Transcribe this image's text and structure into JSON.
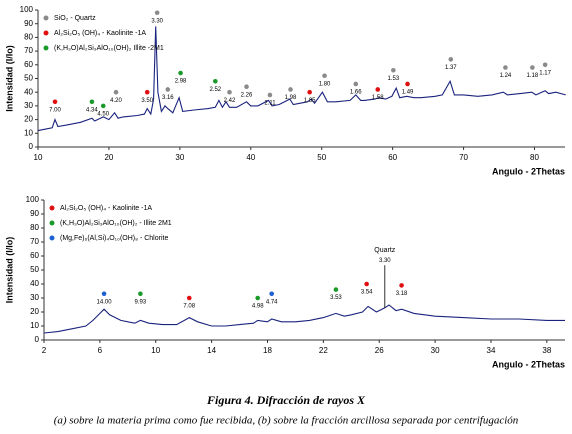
{
  "chart_data": [
    {
      "type": "line",
      "y_label": "Intensidad (I/Io)",
      "x_label": "Angulo - 2Thetas",
      "xlim": [
        10,
        84.3
      ],
      "ylim": [
        0,
        100
      ],
      "xticks": [
        10,
        20,
        30,
        40,
        50,
        60,
        70,
        80
      ],
      "yticks": [
        0,
        10,
        20,
        30,
        40,
        50,
        60,
        70,
        80,
        90,
        100
      ],
      "color": "#1a237e",
      "x": [
        10,
        11,
        12,
        12.4,
        12.8,
        14,
        16,
        17.6,
        18,
        19.2,
        20,
        20.8,
        21.3,
        22,
        24,
        25,
        25.4,
        25.9,
        26.3,
        26.6,
        26.9,
        27.4,
        27.9,
        28.3,
        29,
        29.9,
        30.4,
        32,
        34,
        35,
        35.5,
        36,
        36.5,
        37,
        38,
        39.4,
        40,
        41,
        42.5,
        43,
        44,
        45.5,
        46,
        47,
        48,
        48.5,
        49,
        50.1,
        50.8,
        52,
        54,
        54.8,
        55.5,
        56,
        57.5,
        58,
        59,
        59.9,
        60.5,
        61,
        62,
        63,
        64,
        66,
        67,
        68.1,
        68.7,
        70,
        72,
        74,
        75.6,
        76.2,
        78,
        79.6,
        80.2,
        81.5,
        82,
        83,
        84.4
      ],
      "values": [
        12,
        13,
        14,
        20,
        15,
        16,
        18,
        21,
        19,
        22,
        20,
        25,
        21,
        22,
        23,
        24,
        28,
        24,
        35,
        88,
        40,
        26,
        30,
        28,
        25,
        36,
        26,
        27,
        28,
        29,
        34,
        29,
        33,
        29,
        29,
        33,
        30,
        30,
        34,
        30,
        31,
        35,
        31,
        32,
        33,
        35,
        32,
        40,
        33,
        33,
        34,
        38,
        34,
        34,
        35,
        36,
        35,
        37,
        43,
        36,
        37,
        36,
        36,
        37,
        38,
        48,
        38,
        38,
        37,
        38,
        40,
        38,
        39,
        40,
        38,
        41,
        39,
        40,
        38
      ],
      "legend": [
        {
          "label": "SiO₂ - Quartz",
          "color": "#8a8a8a"
        },
        {
          "label": "Al₂Si₂O₅ (OH)₄ - Kaolinite -1A",
          "color": "#e01010"
        },
        {
          "label": "(K,H₃O)Al₂Si₃AlO₁₀(OH)₂ Illite -2M1",
          "color": "#1a9a2a"
        }
      ],
      "annotations": [
        {
          "x": 12.4,
          "y": 33,
          "label": "7.00",
          "color": "#e01010"
        },
        {
          "x": 17.6,
          "y": 33,
          "label": "4.34",
          "color": "#1a9a2a"
        },
        {
          "x": 19.2,
          "y": 30,
          "label": "4.50",
          "color": "#1a9a2a"
        },
        {
          "x": 21,
          "y": 40,
          "label": "4.20",
          "color": "#8a8a8a"
        },
        {
          "x": 26.8,
          "y": 98,
          "label": "3.30",
          "color": "#8a8a8a"
        },
        {
          "x": 25.4,
          "y": 40,
          "label": "3.50",
          "color": "#e01010"
        },
        {
          "x": 28.3,
          "y": 42,
          "label": "3.16",
          "color": "#8a8a8a"
        },
        {
          "x": 30.1,
          "y": 54,
          "label": "2.98",
          "color": "#1a9a2a"
        },
        {
          "x": 35,
          "y": 48,
          "label": "2.52",
          "color": "#1a9a2a"
        },
        {
          "x": 37,
          "y": 40,
          "label": "2.42",
          "color": "#8a8a8a"
        },
        {
          "x": 39.4,
          "y": 44,
          "label": "2.26",
          "color": "#8a8a8a"
        },
        {
          "x": 42.7,
          "y": 38,
          "label": "2.11",
          "color": "#8a8a8a"
        },
        {
          "x": 45.6,
          "y": 42,
          "label": "1.98",
          "color": "#8a8a8a"
        },
        {
          "x": 48.3,
          "y": 40,
          "label": "1.85",
          "color": "#e01010"
        },
        {
          "x": 50.4,
          "y": 52,
          "label": "1.80",
          "color": "#8a8a8a"
        },
        {
          "x": 54.8,
          "y": 46,
          "label": "1.66",
          "color": "#8a8a8a"
        },
        {
          "x": 57.9,
          "y": 42,
          "label": "1.58",
          "color": "#e01010"
        },
        {
          "x": 60.1,
          "y": 56,
          "label": "1.53",
          "color": "#8a8a8a"
        },
        {
          "x": 62.1,
          "y": 46,
          "label": "1.49",
          "color": "#e01010"
        },
        {
          "x": 68.2,
          "y": 64,
          "label": "1.37",
          "color": "#8a8a8a"
        },
        {
          "x": 75.9,
          "y": 58,
          "label": "1.24",
          "color": "#8a8a8a"
        },
        {
          "x": 79.7,
          "y": 58,
          "label": "1.18",
          "color": "#8a8a8a"
        },
        {
          "x": 81.5,
          "y": 60,
          "label": "1.17",
          "color": "#8a8a8a"
        }
      ]
    },
    {
      "type": "line",
      "y_label": "Intensidad (I/Io)",
      "x_label": "Angulo - 2Thetas",
      "xlim": [
        2,
        39.3
      ],
      "ylim": [
        0,
        100
      ],
      "xticks": [
        2,
        6,
        10,
        14,
        18,
        22,
        26,
        30,
        34,
        38
      ],
      "yticks": [
        0,
        10,
        20,
        30,
        40,
        50,
        60,
        70,
        80,
        90,
        100
      ],
      "color": "#1a237e",
      "x": [
        2,
        3,
        4,
        5,
        5.5,
        6,
        6.3,
        6.7,
        7.5,
        8.5,
        8.9,
        9.5,
        10.5,
        11.5,
        12.4,
        13,
        14,
        15,
        16,
        17,
        17.3,
        18,
        18.3,
        19,
        20,
        21,
        22,
        22.9,
        23.5,
        24,
        24.8,
        25.2,
        25.8,
        26.4,
        26.7,
        27.2,
        27.6,
        28.5,
        30,
        32,
        34,
        36,
        38,
        39.3
      ],
      "values": [
        5,
        6,
        8,
        10,
        14,
        19,
        22,
        18,
        14,
        12,
        14,
        12,
        11,
        11,
        16,
        13,
        10,
        10,
        11,
        12,
        14,
        13,
        15,
        13,
        13,
        14,
        16,
        19,
        17,
        18,
        20,
        24,
        20,
        23,
        25,
        21,
        22,
        19,
        17,
        16,
        15,
        15,
        14,
        14
      ],
      "legend": [
        {
          "label": "Al₂Si₂O₅ (OH)₄ - Kaolinite -1A",
          "color": "#e01010"
        },
        {
          "label": "(K,H₃O)Al₂Si₃AlO₁₀(OH)₂ - Illite 2M1",
          "color": "#1a9a2a"
        },
        {
          "label": "(Mg,Fe)₆(Al,Si)₄O₁₀(OH)₈ - Chlorite",
          "color": "#1f5fd0"
        }
      ],
      "annotations": [
        {
          "x": 6.3,
          "y": 33,
          "label": "14.00",
          "color": "#1f5fd0"
        },
        {
          "x": 8.9,
          "y": 33,
          "label": "9.93",
          "color": "#1a9a2a"
        },
        {
          "x": 12.4,
          "y": 30,
          "label": "7.08",
          "color": "#e01010"
        },
        {
          "x": 17.3,
          "y": 30,
          "label": "4.98",
          "color": "#1a9a2a"
        },
        {
          "x": 18.3,
          "y": 33,
          "label": "4.74",
          "color": "#1f5fd0"
        },
        {
          "x": 22.9,
          "y": 36,
          "label": "3.53",
          "color": "#1a9a2a"
        },
        {
          "x": 25.1,
          "y": 40,
          "label": "3.54",
          "color": "#e01010"
        },
        {
          "x": 27.6,
          "y": 39,
          "label": "3.18",
          "color": "#e01010"
        },
        {
          "x": 26.4,
          "y": 57,
          "label": "3.30",
          "title": "Quartz"
        }
      ]
    }
  ],
  "caption": {
    "title": "Figura 4. Difracción de rayos X",
    "text": "(a) sobre la materia prima como fue recibida, (b) sobre la fracción arcillosa separada por centrifugación"
  }
}
